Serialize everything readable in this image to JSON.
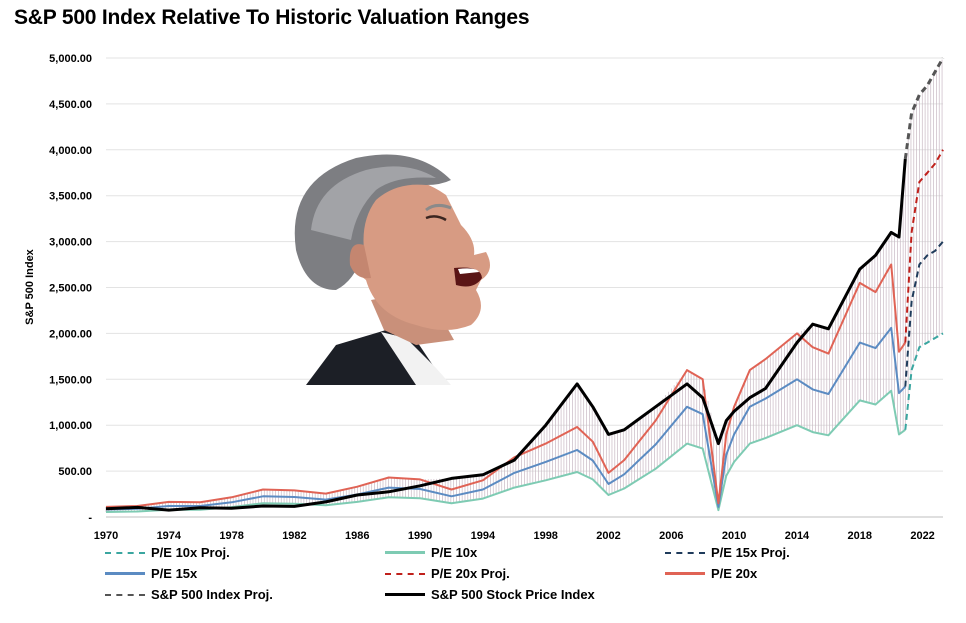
{
  "title": "S&P 500 Index Relative To Historic Valuation Ranges",
  "chart_data": {
    "type": "line",
    "title": "S&P 500 Index Relative To Historic Valuation Ranges",
    "xlabel": "",
    "ylabel": "S&P 500 Index",
    "xlim": [
      1970,
      2023.3
    ],
    "ylim": [
      0,
      5000
    ],
    "x_ticks": [
      "1970",
      "1974",
      "1978",
      "1982",
      "1986",
      "1990",
      "1994",
      "1998",
      "2002",
      "2006",
      "2010",
      "2014",
      "2018",
      "2022"
    ],
    "y_ticks": [
      "-",
      "500.00",
      "1,000.00",
      "1,500.00",
      "2,000.00",
      "2,500.00",
      "3,000.00",
      "3,500.00",
      "4,000.00",
      "4,500.00",
      "5,000.00"
    ],
    "grid": true,
    "legend_position": "bottom",
    "x": [
      1970,
      1972,
      1974,
      1976,
      1978,
      1980,
      1982,
      1984,
      1986,
      1988,
      1990,
      1992,
      1994,
      1996,
      1998,
      2000,
      2001,
      2002,
      2003,
      2005,
      2007,
      2008,
      2009,
      2009.5,
      2010,
      2011,
      2012,
      2014,
      2015,
      2016,
      2018,
      2019,
      2020,
      2020.5,
      2020.9
    ],
    "series": [
      {
        "name": "S&P 500 Stock Price Index",
        "color": "#000000",
        "style": "solid",
        "width": 3,
        "values": [
          90,
          105,
          75,
          100,
          95,
          120,
          115,
          165,
          240,
          275,
          340,
          420,
          460,
          620,
          1000,
          1450,
          1200,
          900,
          950,
          1200,
          1450,
          1300,
          800,
          1050,
          1150,
          1300,
          1400,
          1900,
          2100,
          2050,
          2700,
          2850,
          3100,
          3050,
          3900
        ]
      },
      {
        "name": "P/E 20x",
        "color": "#e06355",
        "style": "solid",
        "width": 2,
        "values": [
          110,
          120,
          165,
          160,
          215,
          300,
          290,
          255,
          330,
          430,
          410,
          300,
          400,
          650,
          800,
          980,
          820,
          480,
          620,
          1050,
          1600,
          1500,
          150,
          900,
          1200,
          1600,
          1720,
          2000,
          1850,
          1780,
          2550,
          2450,
          2750,
          1800,
          1900
        ]
      },
      {
        "name": "P/E 15x",
        "color": "#5b8bc2",
        "style": "solid",
        "width": 2,
        "values": [
          82,
          90,
          120,
          120,
          160,
          225,
          218,
          190,
          245,
          320,
          305,
          225,
          300,
          480,
          600,
          730,
          615,
          360,
          465,
          790,
          1200,
          1120,
          110,
          680,
          900,
          1200,
          1290,
          1500,
          1390,
          1340,
          1900,
          1840,
          2060,
          1350,
          1420
        ]
      },
      {
        "name": "P/E 10x",
        "color": "#7ecbb3",
        "style": "solid",
        "width": 2,
        "values": [
          55,
          60,
          80,
          80,
          108,
          150,
          145,
          128,
          165,
          215,
          205,
          150,
          200,
          320,
          400,
          490,
          410,
          240,
          310,
          525,
          800,
          745,
          75,
          450,
          600,
          800,
          860,
          1000,
          925,
          890,
          1270,
          1225,
          1375,
          900,
          950
        ]
      }
    ],
    "projection_x": [
      2020.9,
      2021.3,
      2021.8,
      2022.3,
      2022.8,
      2023.3
    ],
    "projection_series": [
      {
        "name": "S&P 500 Index Proj.",
        "color": "#555555",
        "style": "dashed",
        "width": 3,
        "values": [
          3900,
          4400,
          4600,
          4700,
          4850,
          5000
        ]
      },
      {
        "name": "P/E 20x Proj.",
        "color": "#c0201b",
        "style": "dashed",
        "width": 2,
        "values": [
          1900,
          3100,
          3650,
          3750,
          3850,
          4000
        ]
      },
      {
        "name": "P/E 15x Proj.",
        "color": "#1f3b5b",
        "style": "dashed",
        "width": 2,
        "values": [
          1420,
          2350,
          2750,
          2850,
          2900,
          3000
        ]
      },
      {
        "name": "P/E 10x Proj.",
        "color": "#3aa6a0",
        "style": "dashed",
        "width": 2,
        "values": [
          950,
          1600,
          1850,
          1900,
          1950,
          2000
        ]
      }
    ]
  },
  "legend": [
    {
      "label": "P/E 10x Proj.",
      "color": "#3aa6a0",
      "style": "dashed"
    },
    {
      "label": "P/E 10x",
      "color": "#7ecbb3",
      "style": "solid"
    },
    {
      "label": "P/E 15x Proj.",
      "color": "#1f3b5b",
      "style": "dashed"
    },
    {
      "label": "P/E 15x",
      "color": "#5b8bc2",
      "style": "solid"
    },
    {
      "label": "P/E 20x Proj.",
      "color": "#c0201b",
      "style": "dashed"
    },
    {
      "label": "P/E 20x",
      "color": "#e06355",
      "style": "solid"
    },
    {
      "label": "S&P 500 Index Proj.",
      "color": "#555555",
      "style": "dashed"
    },
    {
      "label": "S&P 500 Stock Price Index",
      "color": "#000000",
      "style": "solid"
    }
  ]
}
